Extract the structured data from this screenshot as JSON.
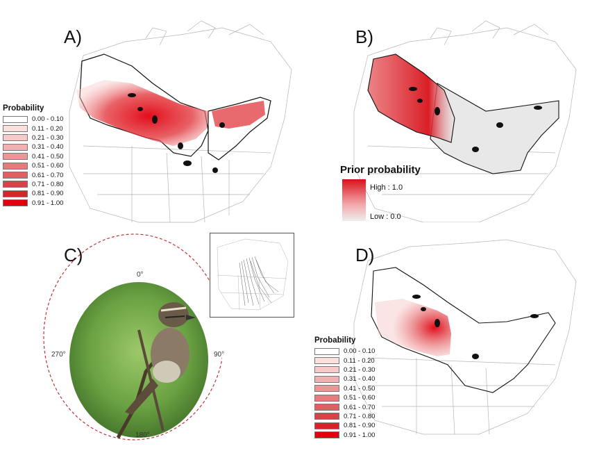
{
  "panels": {
    "a": "A)",
    "b": "B)",
    "c": "C)",
    "d": "D)"
  },
  "legend": {
    "title": "Probability",
    "classes": [
      {
        "label": "0.00 - 0.10",
        "color": "#ffffff"
      },
      {
        "label": "0.11 - 0.20",
        "color": "#fbe0e0"
      },
      {
        "label": "0.21 - 0.30",
        "color": "#f7c9c9"
      },
      {
        "label": "0.31 - 0.40",
        "color": "#f2b0b0"
      },
      {
        "label": "0.41 - 0.50",
        "color": "#ec9697"
      },
      {
        "label": "0.51 - 0.60",
        "color": "#e67b7d"
      },
      {
        "label": "0.61 - 0.70",
        "color": "#e05f62"
      },
      {
        "label": "0.71 - 0.80",
        "color": "#d94246"
      },
      {
        "label": "0.81 - 0.90",
        "color": "#d2262b"
      },
      {
        "label": "0.91 - 1.00",
        "color": "#e2000f"
      }
    ]
  },
  "prior_legend": {
    "title": "Prior probability",
    "high": "High : 1.0",
    "low": "Low : 0.0"
  },
  "compass": {
    "north": "0°",
    "east": "90°",
    "south": "180°",
    "west": "270°"
  },
  "colors": {
    "heat": "#e2000f",
    "map_line": "#9a9a9a",
    "range_outline": "#111111",
    "prior_low": "#e8e8e8",
    "ellipse": "#c0333a"
  }
}
